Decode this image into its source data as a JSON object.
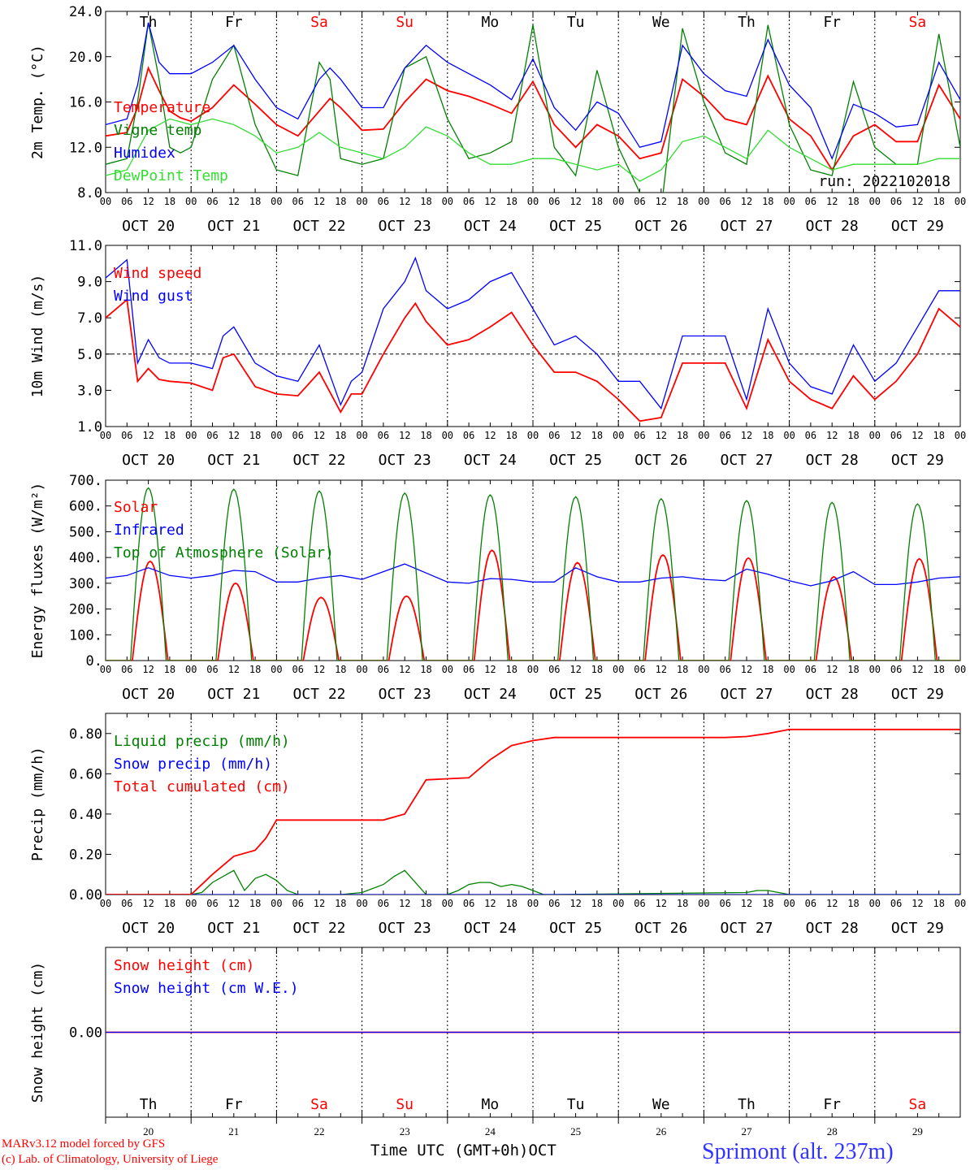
{
  "days": [
    {
      "short": "Th",
      "date": "OCT 20",
      "num": "20",
      "weekend": false
    },
    {
      "short": "Fr",
      "date": "OCT 21",
      "num": "21",
      "weekend": false
    },
    {
      "short": "Sa",
      "date": "OCT 22",
      "num": "22",
      "weekend": true
    },
    {
      "short": "Su",
      "date": "OCT 23",
      "num": "23",
      "weekend": true
    },
    {
      "short": "Mo",
      "date": "OCT 24",
      "num": "24",
      "weekend": false
    },
    {
      "short": "Tu",
      "date": "OCT 25",
      "num": "25",
      "weekend": false
    },
    {
      "short": "We",
      "date": "OCT 26",
      "num": "26",
      "weekend": false
    },
    {
      "short": "Th",
      "date": "OCT 27",
      "num": "27",
      "weekend": false
    },
    {
      "short": "Fr",
      "date": "OCT 28",
      "num": "28",
      "weekend": false
    },
    {
      "short": "Sa",
      "date": "OCT 29",
      "num": "29",
      "weekend": true
    }
  ],
  "hour_ticks": [
    "00",
    "06",
    "12",
    "18"
  ],
  "colors": {
    "red": "#ff0000",
    "darkgreen": "#008000",
    "blue": "#0000ff",
    "lightgreen": "#33dd33",
    "purple": "#800080"
  },
  "footer": {
    "model": "MARv3.12 model forced by GFS",
    "lab": "(c) Lab. of Climatology, University of Liege",
    "xlabel": "Time UTC (GMT+0h)",
    "month": "OCT",
    "station": "Sprimont (alt. 237m)"
  },
  "chart_data": [
    {
      "id": "temp",
      "type": "line",
      "ylabel": "2m Temp. (°C)",
      "ylim": [
        8.0,
        24.0
      ],
      "yticks": [
        "8.0",
        "12.0",
        "16.0",
        "20.0",
        "24.0"
      ],
      "annotation": "run: 2022102018",
      "show_day_names": true,
      "series": [
        {
          "name": "Temperature",
          "color": "#ff0000",
          "x": [
            0,
            6,
            9,
            12,
            15,
            18,
            21,
            24,
            30,
            36,
            42,
            48,
            54,
            60,
            63,
            66,
            72,
            78,
            84,
            90,
            96,
            102,
            108,
            114,
            120,
            126,
            132,
            138,
            144,
            150,
            156,
            162,
            168,
            174,
            180,
            186,
            192,
            198,
            204,
            210,
            216,
            222,
            228,
            234,
            240
          ],
          "y": [
            13.0,
            13.3,
            15.5,
            19.0,
            17.0,
            15.2,
            14.6,
            14.3,
            15.5,
            17.5,
            15.8,
            14.0,
            13.0,
            15.2,
            16.3,
            15.5,
            13.5,
            13.6,
            16.0,
            18.0,
            17.0,
            16.5,
            15.8,
            15.0,
            17.8,
            14.0,
            12.0,
            14.0,
            13.0,
            11.0,
            11.5,
            18.0,
            16.5,
            14.5,
            14.0,
            18.3,
            14.5,
            13.0,
            10.0,
            13.0,
            14.0,
            12.5,
            12.5,
            17.5,
            14.5
          ]
        },
        {
          "name": "Vigne temp",
          "color": "#008000",
          "x": [
            0,
            6,
            9,
            12,
            15,
            18,
            21,
            24,
            30,
            36,
            42,
            48,
            54,
            60,
            63,
            66,
            72,
            78,
            84,
            90,
            96,
            102,
            108,
            114,
            120,
            126,
            132,
            138,
            144,
            150,
            156,
            162,
            168,
            174,
            180,
            186,
            192,
            198,
            204,
            210,
            216,
            222,
            228,
            234,
            240
          ],
          "y": [
            10.5,
            11.0,
            16.0,
            23.0,
            18.0,
            12.0,
            11.5,
            12.0,
            18.0,
            21.0,
            14.0,
            10.0,
            9.5,
            19.5,
            18.0,
            11.0,
            10.5,
            11.0,
            19.0,
            20.0,
            14.5,
            11.0,
            11.5,
            12.5,
            22.8,
            12.0,
            9.5,
            18.8,
            12.0,
            8.0,
            6.5,
            22.5,
            16.0,
            11.5,
            10.5,
            22.8,
            14.0,
            10.0,
            9.5,
            17.8,
            12.0,
            10.5,
            10.5,
            22.0,
            12.0
          ]
        },
        {
          "name": "Humidex",
          "color": "#0000ff",
          "x": [
            0,
            6,
            9,
            12,
            15,
            18,
            21,
            24,
            30,
            36,
            42,
            48,
            54,
            60,
            63,
            66,
            72,
            78,
            84,
            90,
            96,
            102,
            108,
            114,
            120,
            126,
            132,
            138,
            144,
            150,
            156,
            162,
            168,
            174,
            180,
            186,
            192,
            198,
            204,
            210,
            216,
            222,
            228,
            234,
            240
          ],
          "y": [
            14.0,
            14.5,
            17.5,
            23.0,
            19.5,
            18.5,
            18.5,
            18.5,
            19.5,
            21.0,
            18.0,
            15.5,
            14.5,
            18.0,
            19.0,
            18.0,
            15.5,
            15.5,
            19.0,
            21.0,
            19.5,
            18.5,
            17.5,
            16.2,
            19.8,
            15.5,
            13.5,
            16.0,
            15.0,
            12.0,
            12.5,
            21.0,
            18.5,
            17.0,
            16.5,
            21.5,
            17.5,
            15.5,
            11.0,
            15.8,
            15.0,
            13.8,
            14.0,
            19.5,
            16.2
          ]
        },
        {
          "name": "DewPoint Temp",
          "color": "#33dd33",
          "x": [
            0,
            6,
            12,
            18,
            24,
            30,
            36,
            42,
            48,
            54,
            60,
            66,
            72,
            78,
            84,
            90,
            96,
            102,
            108,
            114,
            120,
            126,
            132,
            138,
            144,
            150,
            156,
            162,
            168,
            174,
            180,
            186,
            192,
            198,
            204,
            210,
            216,
            222,
            228,
            234,
            240
          ],
          "y": [
            9.5,
            10.0,
            13.5,
            14.5,
            14.0,
            14.5,
            14.0,
            13.0,
            11.5,
            12.0,
            13.3,
            12.0,
            11.5,
            11.0,
            12.0,
            13.8,
            13.0,
            11.5,
            10.5,
            10.5,
            11.0,
            11.0,
            10.5,
            10.0,
            10.5,
            9.0,
            10.0,
            12.5,
            13.0,
            12.0,
            11.0,
            13.5,
            12.0,
            11.0,
            10.0,
            10.5,
            10.5,
            10.5,
            10.5,
            11.0,
            11.0
          ]
        }
      ]
    },
    {
      "id": "wind",
      "type": "line",
      "ylabel": "10m Wind (m/s)",
      "ylim": [
        1.0,
        11.0
      ],
      "yticks": [
        "1.0",
        "3.0",
        "5.0",
        "7.0",
        "9.0",
        "11.0"
      ],
      "ref_line": 5.0,
      "show_day_names": false,
      "series": [
        {
          "name": "Wind speed",
          "color": "#ff0000",
          "x": [
            0,
            6,
            9,
            12,
            15,
            18,
            24,
            30,
            33,
            36,
            42,
            48,
            54,
            60,
            66,
            69,
            72,
            78,
            84,
            87,
            90,
            96,
            102,
            108,
            114,
            120,
            126,
            132,
            138,
            144,
            150,
            156,
            162,
            168,
            174,
            180,
            186,
            192,
            198,
            204,
            210,
            216,
            222,
            228,
            234,
            240
          ],
          "y": [
            7.0,
            8.0,
            3.5,
            4.2,
            3.6,
            3.5,
            3.4,
            3.0,
            4.8,
            5.0,
            3.2,
            2.8,
            2.7,
            4.0,
            1.8,
            2.8,
            2.8,
            5.0,
            7.0,
            7.8,
            6.8,
            5.5,
            5.8,
            6.5,
            7.3,
            5.5,
            4.0,
            4.0,
            3.5,
            2.5,
            1.3,
            1.5,
            4.5,
            4.5,
            4.5,
            2.0,
            5.8,
            3.5,
            2.5,
            2.0,
            3.8,
            2.5,
            3.5,
            5.0,
            7.5,
            6.5
          ]
        },
        {
          "name": "Wind gust",
          "color": "#0000ff",
          "x": [
            0,
            6,
            9,
            12,
            15,
            18,
            24,
            30,
            33,
            36,
            42,
            48,
            54,
            60,
            66,
            69,
            72,
            78,
            84,
            87,
            90,
            96,
            102,
            108,
            114,
            120,
            126,
            132,
            138,
            144,
            150,
            156,
            162,
            168,
            174,
            180,
            186,
            192,
            198,
            204,
            210,
            216,
            222,
            228,
            234,
            240
          ],
          "y": [
            9.2,
            10.2,
            4.5,
            5.8,
            4.8,
            4.5,
            4.5,
            4.2,
            6.0,
            6.5,
            4.5,
            3.8,
            3.5,
            5.5,
            2.2,
            3.5,
            4.0,
            7.5,
            9.0,
            10.3,
            8.5,
            7.5,
            8.0,
            9.0,
            9.5,
            7.5,
            5.5,
            6.0,
            5.0,
            3.5,
            3.5,
            2.0,
            6.0,
            6.0,
            6.0,
            2.5,
            7.5,
            4.5,
            3.2,
            2.8,
            5.5,
            3.5,
            4.5,
            6.5,
            8.5,
            8.5
          ]
        }
      ]
    },
    {
      "id": "energy",
      "type": "line",
      "ylabel": "Energy fluxes (W/m²)",
      "ylim": [
        0,
        700
      ],
      "yticks": [
        "0.",
        "100.",
        "200.",
        "300.",
        "400.",
        "500.",
        "600.",
        "700."
      ],
      "show_day_names": false,
      "series": [
        {
          "name": "Solar",
          "color": "#ff0000",
          "peaks": [
            [
              12.5,
              385
            ],
            [
              36.5,
              300
            ],
            [
              60.5,
              245
            ],
            [
              84.5,
              250
            ],
            [
              108.5,
              428
            ],
            [
              132.5,
              380
            ],
            [
              156.5,
              410
            ],
            [
              180.5,
              398
            ],
            [
              204.5,
              325
            ],
            [
              228.5,
              395
            ]
          ],
          "halfwidth": 5.0
        },
        {
          "name": "Infrared",
          "color": "#0000ff",
          "x": [
            0,
            6,
            12,
            18,
            24,
            30,
            36,
            42,
            48,
            54,
            60,
            66,
            72,
            78,
            84,
            90,
            96,
            102,
            108,
            114,
            120,
            126,
            132,
            138,
            144,
            150,
            156,
            162,
            168,
            174,
            180,
            186,
            192,
            198,
            204,
            210,
            216,
            222,
            228,
            234,
            240
          ],
          "y": [
            320,
            330,
            360,
            330,
            320,
            330,
            350,
            345,
            305,
            305,
            320,
            330,
            315,
            345,
            375,
            340,
            305,
            300,
            318,
            315,
            305,
            305,
            360,
            325,
            305,
            305,
            320,
            325,
            315,
            310,
            355,
            335,
            310,
            290,
            310,
            345,
            295,
            295,
            305,
            320,
            325
          ]
        },
        {
          "name": "Top of Atmosphere (Solar)",
          "color": "#008000",
          "peaks": [
            [
              12.0,
              670
            ],
            [
              36.0,
              665
            ],
            [
              60.0,
              658
            ],
            [
              84.0,
              650
            ],
            [
              108.0,
              643
            ],
            [
              132.0,
              636
            ],
            [
              156.0,
              628
            ],
            [
              180.0,
              621
            ],
            [
              204.0,
              614
            ],
            [
              228.0,
              608
            ]
          ],
          "halfwidth": 5.0
        }
      ]
    },
    {
      "id": "precip",
      "type": "line",
      "ylabel": "Precip (mm/h)",
      "ylim": [
        0.0,
        0.9
      ],
      "yticks": [
        "0.00",
        "0.20",
        "0.40",
        "0.60",
        "0.80"
      ],
      "show_day_names": false,
      "series": [
        {
          "name": "Liquid precip (mm/h)",
          "color": "#008000",
          "x": [
            0,
            24,
            27,
            30,
            33,
            36,
            39,
            42,
            45,
            48,
            51,
            54,
            57,
            60,
            66,
            72,
            78,
            81,
            84,
            87,
            90,
            93,
            96,
            99,
            102,
            105,
            108,
            111,
            114,
            117,
            120,
            123,
            126,
            180,
            183,
            186,
            189,
            192,
            240
          ],
          "y": [
            0,
            0,
            0.01,
            0.06,
            0.09,
            0.12,
            0.02,
            0.08,
            0.1,
            0.07,
            0.02,
            0.0,
            0.0,
            0.0,
            0.0,
            0.01,
            0.05,
            0.09,
            0.12,
            0.06,
            0.0,
            0.0,
            0.0,
            0.02,
            0.05,
            0.06,
            0.06,
            0.04,
            0.05,
            0.04,
            0.02,
            0.0,
            0.0,
            0.01,
            0.02,
            0.02,
            0.01,
            0.0,
            0.0
          ]
        },
        {
          "name": "Snow precip (mm/h)",
          "color": "#0000ff",
          "x": [
            0,
            240
          ],
          "y": [
            0,
            0
          ]
        },
        {
          "name": "Total cumulated (cm)",
          "color": "#ff0000",
          "x": [
            0,
            24,
            30,
            36,
            42,
            45,
            48,
            54,
            60,
            66,
            72,
            78,
            84,
            90,
            96,
            102,
            108,
            114,
            120,
            126,
            132,
            138,
            144,
            150,
            156,
            162,
            168,
            174,
            180,
            186,
            192,
            240
          ],
          "y": [
            0,
            0,
            0.1,
            0.19,
            0.22,
            0.28,
            0.37,
            0.37,
            0.37,
            0.37,
            0.37,
            0.37,
            0.4,
            0.57,
            0.575,
            0.58,
            0.67,
            0.74,
            0.765,
            0.78,
            0.78,
            0.78,
            0.78,
            0.78,
            0.78,
            0.78,
            0.78,
            0.78,
            0.785,
            0.8,
            0.82,
            0.82
          ]
        }
      ]
    },
    {
      "id": "snow",
      "type": "line",
      "ylabel": "Snow height (cm)",
      "ylim": [
        -1.0,
        1.0
      ],
      "yticks": [
        "0.00"
      ],
      "show_day_names": true,
      "series": [
        {
          "name": "Snow height (cm)",
          "color": "#ff0000",
          "x": [
            0,
            240
          ],
          "y": [
            0,
            0
          ]
        },
        {
          "name": "Snow height (cm W.E.)",
          "color": "#0000ff",
          "x": [
            0,
            240
          ],
          "y": [
            0,
            0
          ]
        }
      ]
    }
  ]
}
